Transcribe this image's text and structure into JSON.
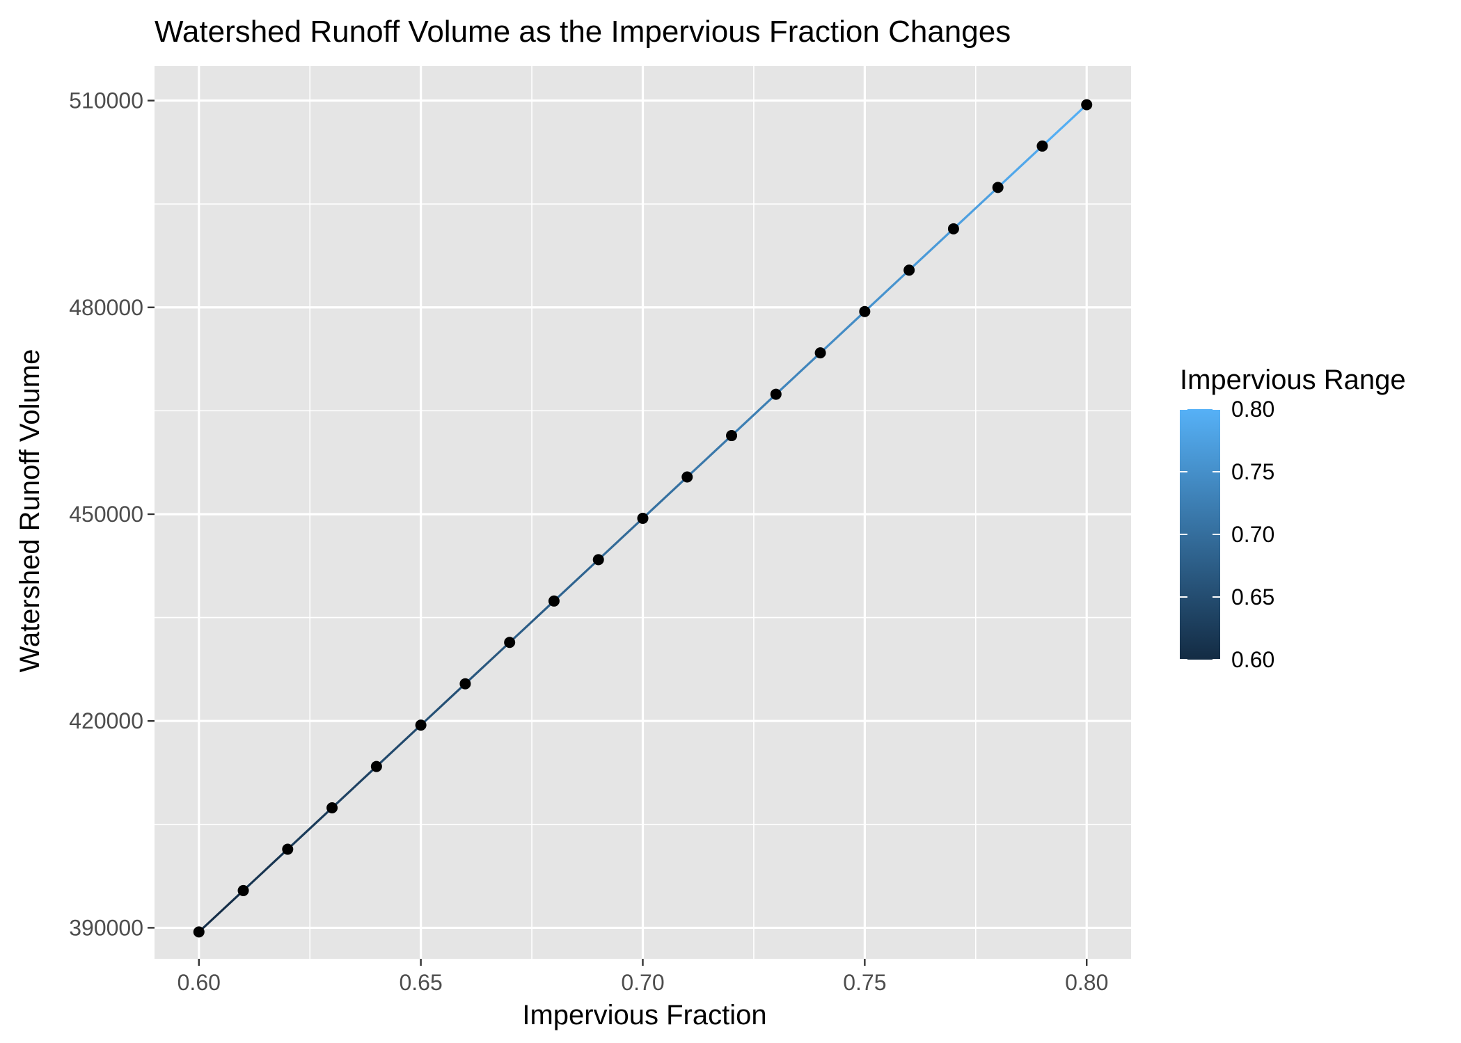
{
  "chart_data": {
    "type": "line",
    "title": "Watershed Runoff Volume as the Impervious Fraction Changes",
    "xlabel": "Impervious Fraction",
    "ylabel": "Watershed Runoff Volume",
    "xlim": [
      0.59,
      0.81
    ],
    "ylim": [
      385500,
      515000
    ],
    "x_ticks": [
      0.6,
      0.65,
      0.7,
      0.75,
      0.8
    ],
    "x_tick_labels": [
      "0.60",
      "0.65",
      "0.70",
      "0.75",
      "0.80"
    ],
    "y_ticks": [
      390000,
      420000,
      450000,
      480000,
      510000
    ],
    "y_tick_labels": [
      "390000",
      "420000",
      "450000",
      "480000",
      "510000"
    ],
    "grid": true,
    "legend": {
      "title": "Impervious Range",
      "position": "right",
      "ticks": [
        0.6,
        0.65,
        0.7,
        0.75,
        0.8
      ],
      "tick_labels": [
        "0.60",
        "0.65",
        "0.70",
        "0.75",
        "0.80"
      ],
      "color_low": "#132B43",
      "color_high": "#56B1F7"
    },
    "point_color": "#000000",
    "panel_background": "#e5e5e5",
    "grid_color": "#ffffff",
    "x": [
      0.6,
      0.61,
      0.62,
      0.63,
      0.64,
      0.65,
      0.66,
      0.67,
      0.68,
      0.69,
      0.7,
      0.71,
      0.72,
      0.73,
      0.74,
      0.75,
      0.76,
      0.77,
      0.78,
      0.79,
      0.8
    ],
    "y": [
      389400,
      395400,
      401400,
      407400,
      413400,
      419400,
      425400,
      431400,
      437400,
      443400,
      449400,
      455400,
      461400,
      467400,
      473400,
      479400,
      485400,
      491400,
      497400,
      503400,
      509400
    ]
  }
}
